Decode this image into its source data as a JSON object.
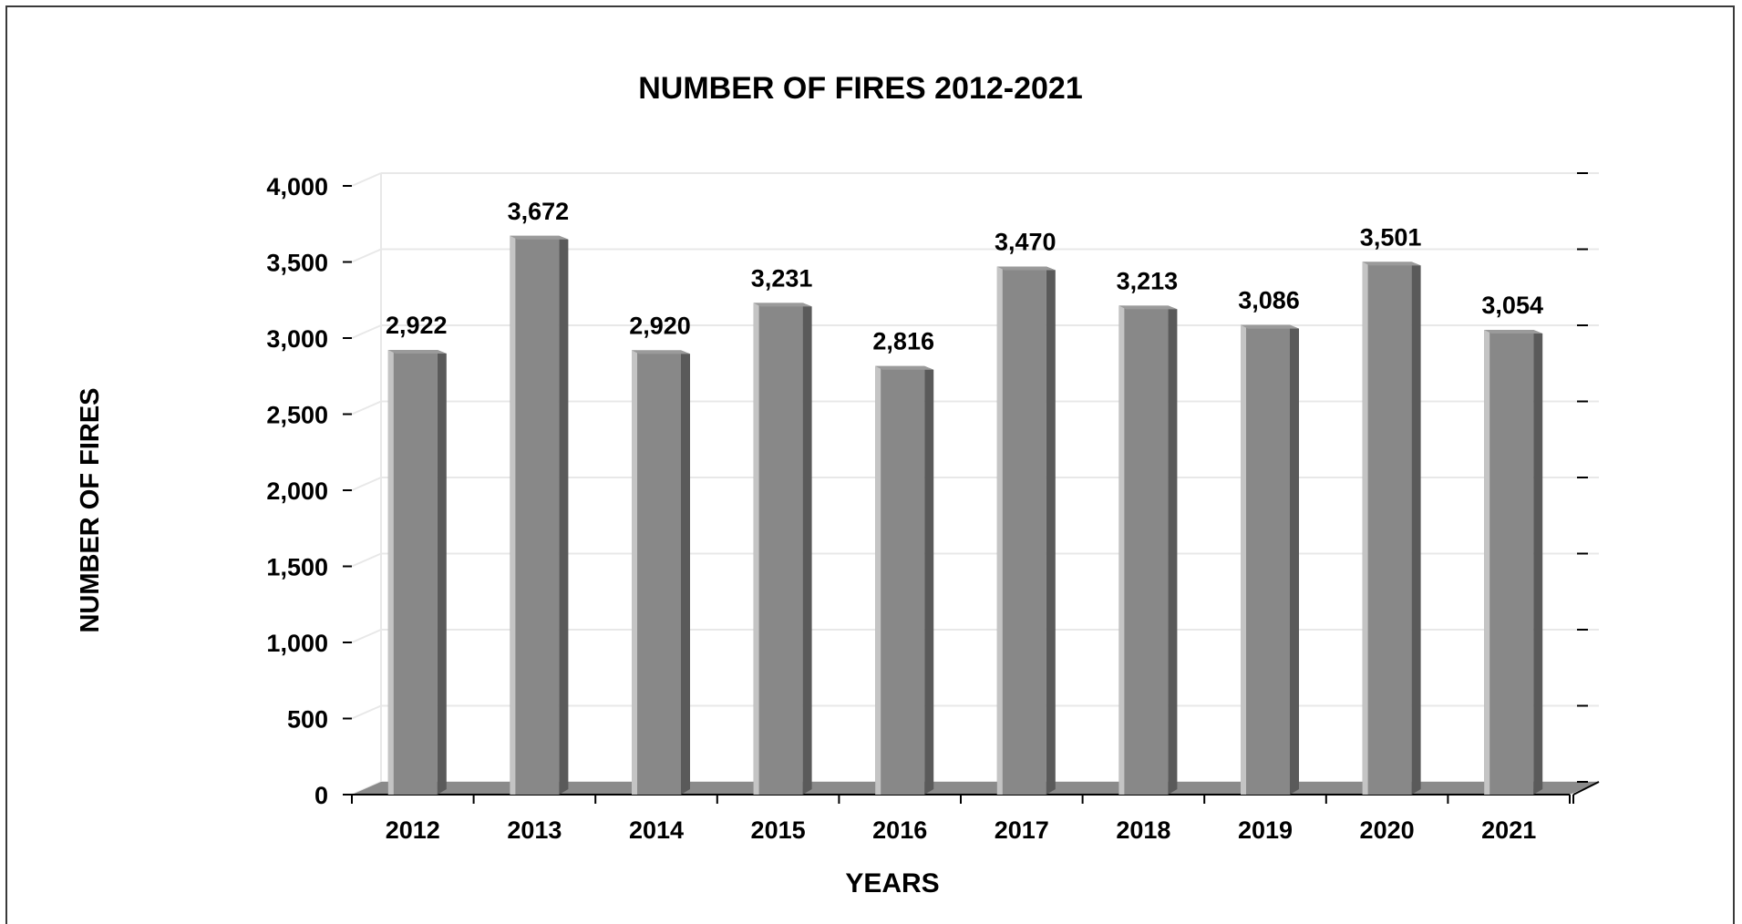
{
  "chart_data": {
    "type": "bar",
    "title": "NUMBER OF FIRES 2012-2021",
    "xlabel": "YEARS",
    "ylabel": "NUMBER OF FIRES",
    "categories": [
      "2012",
      "2013",
      "2014",
      "2015",
      "2016",
      "2017",
      "2018",
      "2019",
      "2020",
      "2021"
    ],
    "values": [
      2922,
      3672,
      2920,
      3231,
      2816,
      3470,
      3213,
      3086,
      3501,
      3054
    ],
    "value_labels": [
      "2,922",
      "3,672",
      "2,920",
      "3,231",
      "2,816",
      "3,470",
      "3,213",
      "3,086",
      "3,501",
      "3,054"
    ],
    "ylim": [
      0,
      4000
    ],
    "yticks": [
      0,
      500,
      1000,
      1500,
      2000,
      2500,
      3000,
      3500,
      4000
    ],
    "ytick_labels": [
      "0",
      "500",
      "1,000",
      "1,500",
      "2,000",
      "2,500",
      "3,000",
      "3,500",
      "4,000"
    ],
    "grid": true,
    "legend": "none",
    "style": "3d-bars",
    "colors": {
      "bar_front": "#888888",
      "bar_side": "#5a5a5a",
      "bar_highlight": "#c4c4c4",
      "floor": "#8a8a8a",
      "grid": "#e8e8e8",
      "axis": "#000000"
    }
  }
}
